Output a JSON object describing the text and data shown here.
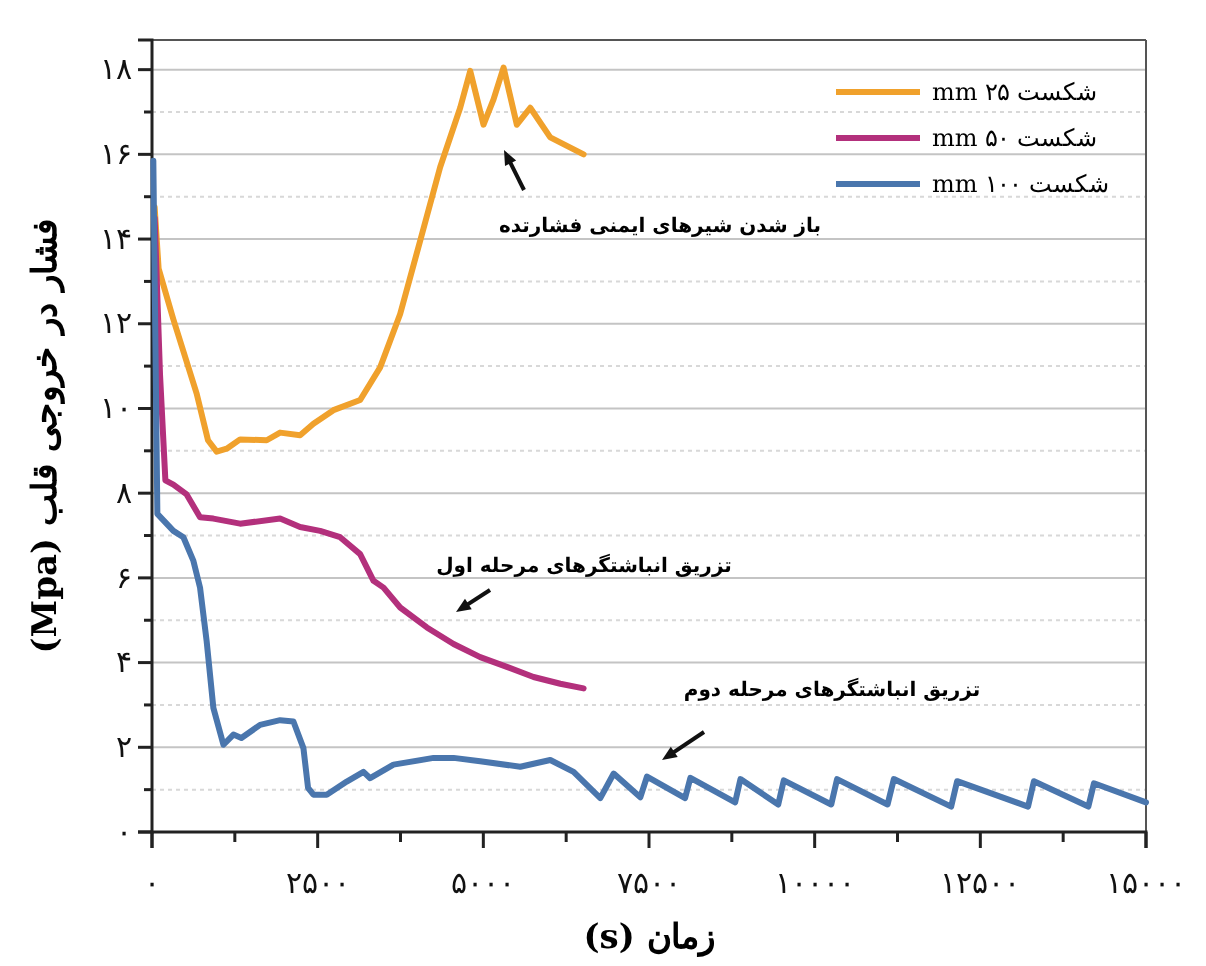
{
  "chart_data": {
    "type": "line",
    "xlabel": "زمان (s)",
    "ylabel": "فشار در خروجی قلب (Mpa)",
    "xlim": [
      0,
      15000
    ],
    "ylim": [
      0,
      18.7
    ],
    "xticks": [
      {
        "value": 0,
        "label": "۰"
      },
      {
        "value": 1250,
        "label": null
      },
      {
        "value": 2500,
        "label": "۲۵۰۰"
      },
      {
        "value": 3750,
        "label": null
      },
      {
        "value": 5000,
        "label": "۵۰۰۰"
      },
      {
        "value": 6250,
        "label": null
      },
      {
        "value": 7500,
        "label": "۷۵۰۰"
      },
      {
        "value": 8750,
        "label": null
      },
      {
        "value": 10000,
        "label": "۱۰۰۰۰"
      },
      {
        "value": 11250,
        "label": null
      },
      {
        "value": 12500,
        "label": "۱۲۵۰۰"
      },
      {
        "value": 13750,
        "label": null
      },
      {
        "value": 15000,
        "label": "۱۵۰۰۰"
      }
    ],
    "yticks": [
      {
        "value": 0,
        "label": "۰"
      },
      {
        "value": 1,
        "label": null
      },
      {
        "value": 2,
        "label": "۲"
      },
      {
        "value": 3,
        "label": null
      },
      {
        "value": 4,
        "label": "۴"
      },
      {
        "value": 5,
        "label": null
      },
      {
        "value": 6,
        "label": "۶"
      },
      {
        "value": 7,
        "label": null
      },
      {
        "value": 8,
        "label": "۸"
      },
      {
        "value": 9,
        "label": null
      },
      {
        "value": 10,
        "label": "۱۰"
      },
      {
        "value": 11,
        "label": null
      },
      {
        "value": 12,
        "label": "۱۲"
      },
      {
        "value": 13,
        "label": null
      },
      {
        "value": 14,
        "label": "۱۴"
      },
      {
        "value": 15,
        "label": null
      },
      {
        "value": 16,
        "label": "۱۶"
      },
      {
        "value": 17,
        "label": null
      },
      {
        "value": 18,
        "label": "۱۸"
      }
    ],
    "grid": "y",
    "legend": "top right",
    "marker": "none",
    "line_style": "solid",
    "series": [
      {
        "name": "شکست ۲۵ mm",
        "color": "#f0a12c",
        "x": [
          40,
          100,
          323,
          674,
          845,
          976,
          1127,
          1329,
          1731,
          1933,
          2235,
          2436,
          2738,
          3141,
          3443,
          3745,
          4047,
          4349,
          4651,
          4802,
          5003,
          5154,
          5305,
          5506,
          5708,
          6010,
          6513
        ],
        "values": [
          14.75,
          13.3,
          12.1,
          10.35,
          9.25,
          8.98,
          9.05,
          9.27,
          9.25,
          9.43,
          9.37,
          9.64,
          9.96,
          10.2,
          10.97,
          12.23,
          13.96,
          15.7,
          17.1,
          17.97,
          16.7,
          17.3,
          18.05,
          16.7,
          17.1,
          16.4,
          16.0
        ]
      },
      {
        "name": "شکست ۵۰ mm",
        "color": "#b3307c",
        "x": [
          40,
          121,
          202,
          323,
          523,
          725,
          926,
          1329,
          1933,
          2235,
          2537,
          2839,
          3141,
          3343,
          3494,
          3745,
          4148,
          4551,
          4953,
          5355,
          5758,
          6161,
          6513
        ],
        "values": [
          14.5,
          10.8,
          8.3,
          8.2,
          7.97,
          7.43,
          7.4,
          7.28,
          7.4,
          7.2,
          7.11,
          6.96,
          6.56,
          5.93,
          5.77,
          5.3,
          4.83,
          4.44,
          4.13,
          3.9,
          3.66,
          3.5,
          3.39
        ]
      },
      {
        "name": "شکست ۱۰۰ mm",
        "color": "#4a76ad",
        "x": [
          20,
          51,
          81,
          323,
          474,
          625,
          725,
          825,
          926,
          1078,
          1229,
          1349,
          1631,
          1933,
          2134,
          2285,
          2355,
          2436,
          2637,
          2939,
          3191,
          3292,
          3644,
          4249,
          4551,
          4953,
          5557,
          6010,
          6362,
          6765,
          6967,
          7369,
          7470,
          8045,
          8125,
          8800,
          8880,
          9450,
          9534,
          10250,
          10338,
          11100,
          11195,
          12060,
          12150,
          13220,
          13309,
          14130,
          14215,
          15000
        ],
        "values": [
          15.85,
          11.6,
          7.51,
          7.11,
          6.96,
          6.4,
          5.77,
          4.5,
          2.93,
          2.06,
          2.3,
          2.22,
          2.53,
          2.64,
          2.61,
          1.98,
          1.04,
          0.88,
          0.88,
          1.19,
          1.42,
          1.27,
          1.59,
          1.75,
          1.75,
          1.67,
          1.54,
          1.7,
          1.42,
          0.8,
          1.38,
          0.82,
          1.31,
          0.8,
          1.28,
          0.7,
          1.25,
          0.65,
          1.22,
          0.65,
          1.25,
          0.65,
          1.25,
          0.6,
          1.2,
          0.6,
          1.2,
          0.6,
          1.15,
          0.7
        ]
      }
    ],
    "annotations": [
      "باز شدن شیرهای ایمنی فشارتده",
      "تزریق انباشتگرهای مرحله اول",
      "تزریق انباشتگرهای مرحله دوم"
    ]
  }
}
